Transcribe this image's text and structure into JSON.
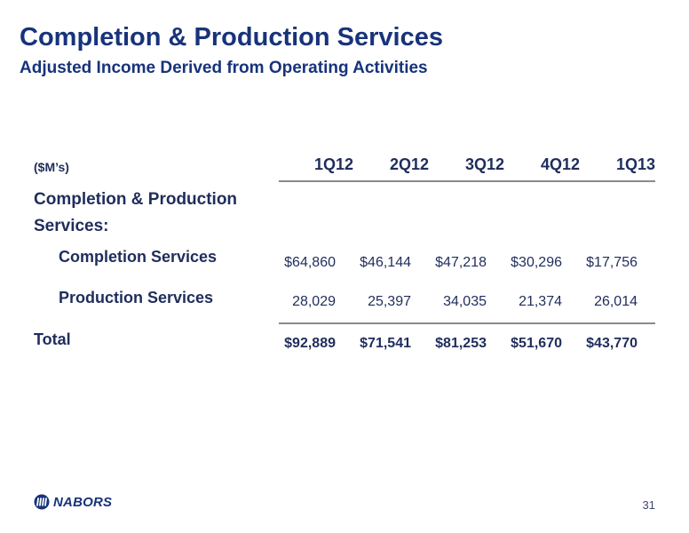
{
  "slide": {
    "title": "Completion & Production Services",
    "subtitle": "Adjusted Income Derived from Operating Activities",
    "page_number": "31"
  },
  "table": {
    "unit_label": "($M’s)",
    "columns": [
      "1Q12",
      "2Q12",
      "3Q12",
      "4Q12",
      "1Q13"
    ],
    "section_label": "Completion & Production Services:",
    "rows": [
      {
        "label": "Completion Services",
        "values": [
          "$64,860",
          "$46,144",
          "$47,218",
          "$30,296",
          "$17,756"
        ]
      },
      {
        "label": "Production Services",
        "values": [
          "28,029",
          "25,397",
          "34,035",
          "21,374",
          "26,014"
        ]
      },
      {
        "label": "Total",
        "values": [
          "$92,889",
          "$71,541",
          "$81,253",
          "$51,670",
          "$43,770"
        ]
      }
    ]
  },
  "footer": {
    "logo_text": "NABORS",
    "logo_icon": "nabors-logo-icon"
  }
}
